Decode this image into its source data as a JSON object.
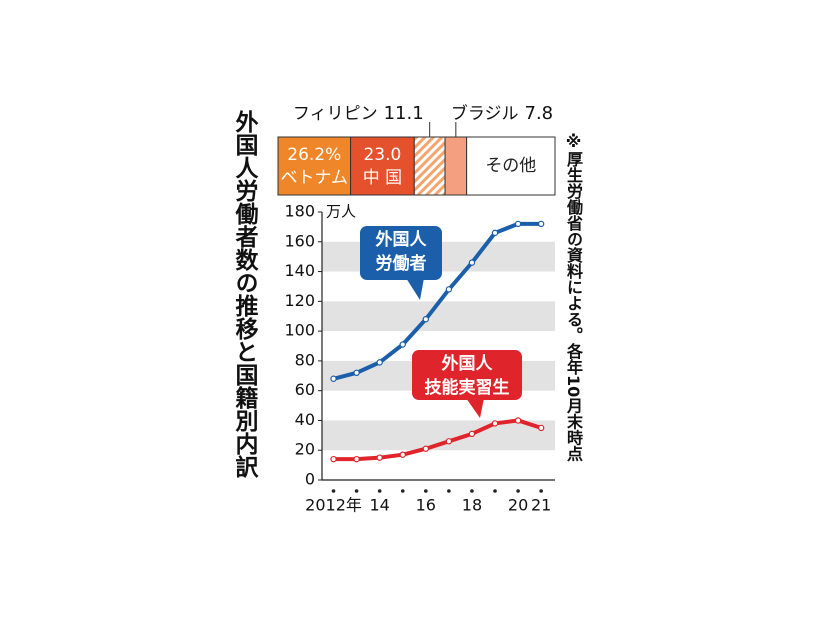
{
  "chart_data": [
    {
      "type": "stacked-bar",
      "xlim": [
        0,
        100
      ],
      "series": [
        {
          "name": "ベトナム",
          "color": "#f0862a",
          "values": [
            26.2
          ],
          "value_labels": [
            "26.2%"
          ]
        },
        {
          "name": "中 国",
          "color": "#e5512c",
          "values": [
            23.0
          ],
          "value_labels": [
            "23.0"
          ]
        },
        {
          "name": "フィリピン",
          "color": "#f4a56e",
          "hatch": true,
          "values": [
            11.1
          ]
        },
        {
          "name": "ブラジル",
          "color": "#f4a080",
          "values": [
            7.8
          ]
        },
        {
          "name": "その他",
          "color": "#ffffff",
          "values": [
            31.9
          ]
        }
      ]
    },
    {
      "type": "line",
      "title": "外国人労働者数の推移と国籍別内訳",
      "note": "※厚生労働省の資料による。各年10月末時点",
      "unit": "万人",
      "x": [
        2012,
        2013,
        2014,
        2015,
        2016,
        2017,
        2018,
        2019,
        2020,
        2021
      ],
      "xlim": [
        2011.5,
        2021.6
      ],
      "xticks": [
        {
          "value": 2012,
          "label": "2012年"
        },
        {
          "value": 2014,
          "label": "14"
        },
        {
          "value": 2016,
          "label": "16"
        },
        {
          "value": 2018,
          "label": "18"
        },
        {
          "value": 2020,
          "label": "20"
        },
        {
          "value": 2021,
          "label": "21"
        }
      ],
      "ylim": [
        0,
        180
      ],
      "yticks": [
        0,
        20,
        40,
        60,
        80,
        100,
        120,
        140,
        160,
        180
      ],
      "bands": true,
      "series": [
        {
          "name": [
            "外国人",
            "労働者"
          ],
          "color": "#1b5faa",
          "values": [
            68,
            72,
            79,
            91,
            108,
            128,
            146,
            166,
            172,
            172
          ]
        },
        {
          "name": [
            "外国人",
            "技能実習生"
          ],
          "color": "#e0242b",
          "values": [
            14,
            14,
            15,
            17,
            21,
            26,
            31,
            38,
            40,
            35
          ]
        }
      ]
    }
  ]
}
